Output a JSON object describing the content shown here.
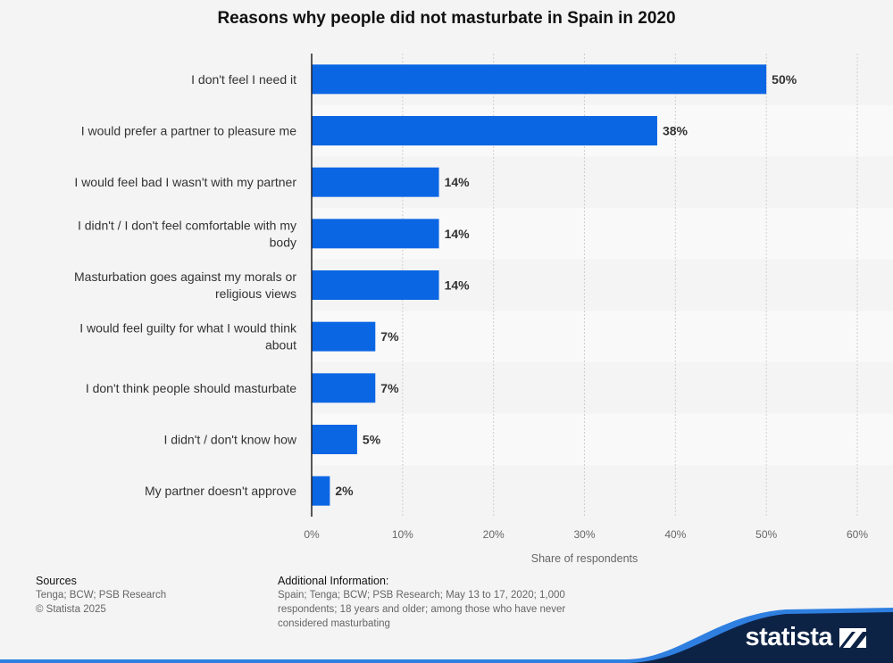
{
  "chart_data": {
    "type": "bar",
    "orientation": "horizontal",
    "title": "Reasons why people did not masturbate in Spain in 2020",
    "categories": [
      [
        "I don't feel I need it"
      ],
      [
        "I would prefer a partner to pleasure me"
      ],
      [
        "I would feel bad I wasn't with my partner"
      ],
      [
        "I didn't / I don't feel comfortable with my",
        "body"
      ],
      [
        "Masturbation goes against my morals or",
        "religious views"
      ],
      [
        "I would feel guilty for what I would think",
        "about"
      ],
      [
        "I don't think people should masturbate"
      ],
      [
        "I didn't / don't know how"
      ],
      [
        "My partner doesn't approve"
      ]
    ],
    "values": [
      50,
      38,
      14,
      14,
      14,
      7,
      7,
      5,
      2
    ],
    "value_labels": [
      "50%",
      "38%",
      "14%",
      "14%",
      "14%",
      "7%",
      "7%",
      "5%",
      "2%"
    ],
    "xlim": [
      0,
      60
    ],
    "xticks": [
      0,
      10,
      20,
      30,
      40,
      50,
      60
    ],
    "xtick_labels": [
      "0%",
      "10%",
      "20%",
      "30%",
      "40%",
      "50%",
      "60%"
    ],
    "xlabel": "Share of respondents",
    "ylabel": "",
    "grid": true,
    "bar_color": "#0b66e4"
  },
  "footer": {
    "sources_heading": "Sources",
    "sources_line1": "Tenga; BCW; PSB Research",
    "sources_line2": "© Statista 2025",
    "additional_heading": "Additional Information:",
    "additional_text": "Spain; Tenga; BCW; PSB Research; May 13 to 17, 2020; 1,000 respondents; 18 years and older; among those who have never considered masturbating"
  },
  "brand": {
    "name": "statista",
    "logo_icon": "statista-flag-icon",
    "color_dark": "#0d2346",
    "color_accent": "#2f7fe0"
  }
}
